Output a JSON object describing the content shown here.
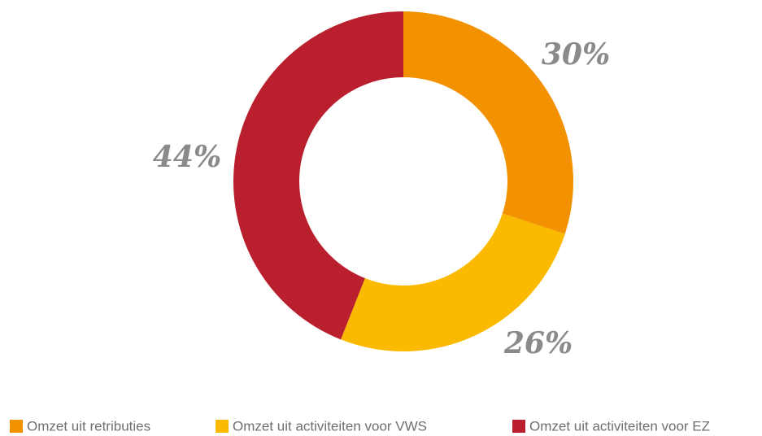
{
  "chart_data": {
    "type": "pie",
    "donut": true,
    "categories": [
      "Omzet uit retributies",
      "Omzet uit activiteiten voor VWS",
      "Omzet uit activiteiten voor EZ"
    ],
    "values": [
      30,
      26,
      44
    ],
    "value_labels": [
      "30%",
      "26%",
      "44%"
    ],
    "colors": [
      "#f39200",
      "#fbba00",
      "#ba1f2d"
    ],
    "legend": "bottom"
  }
}
